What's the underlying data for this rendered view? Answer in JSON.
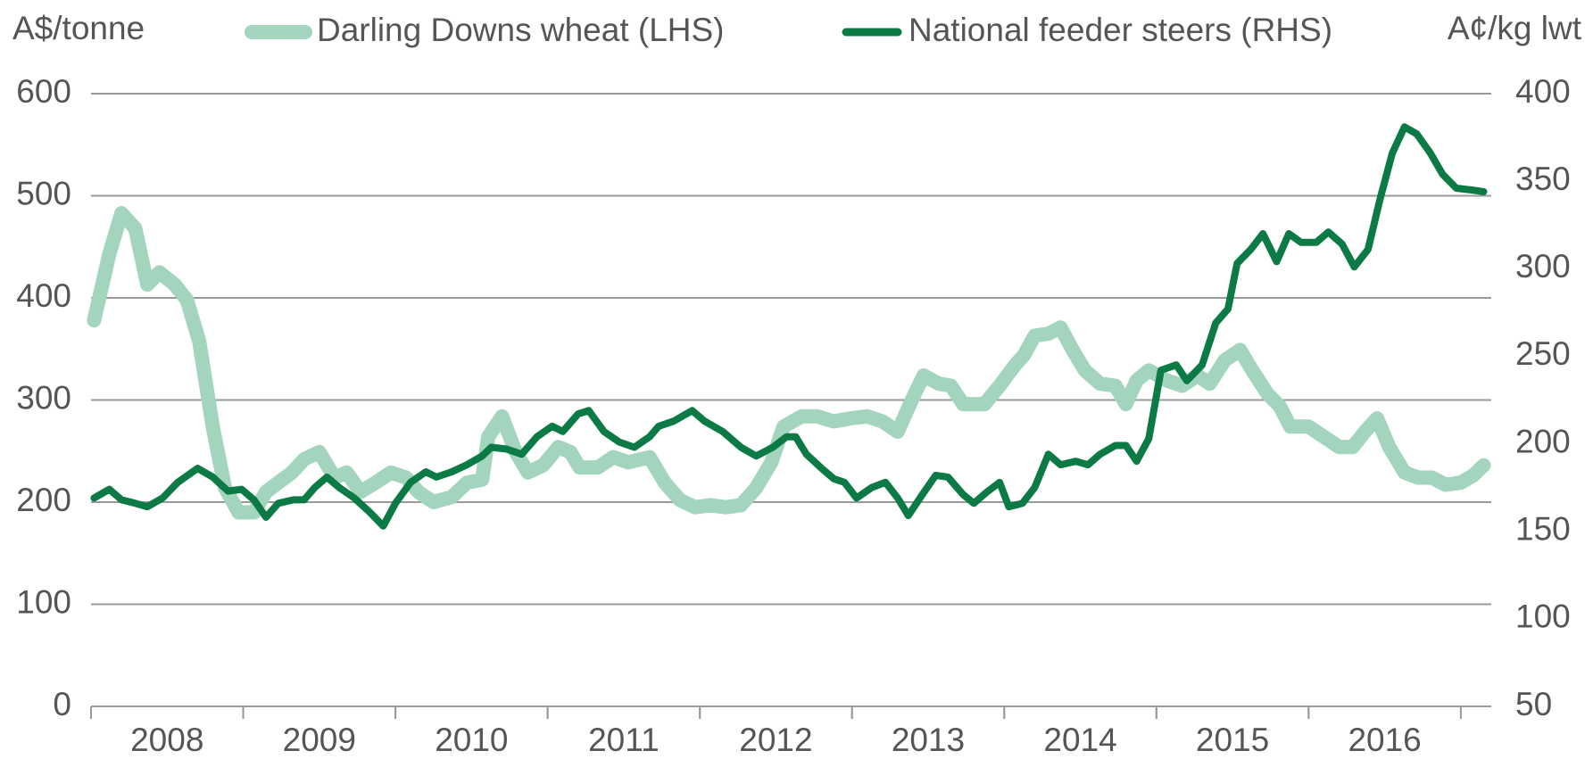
{
  "chart_data": {
    "type": "line",
    "y_label": "A$/tonne",
    "y2_label": "A¢/kg lwt",
    "xlim": [
      2008,
      2017.2
    ],
    "xticks": [
      {
        "value": 2008.5,
        "label": "2008"
      },
      {
        "value": 2009.5,
        "label": "2009"
      },
      {
        "value": 2010.5,
        "label": "2010"
      },
      {
        "value": 2011.5,
        "label": "2011"
      },
      {
        "value": 2012.5,
        "label": "2012"
      },
      {
        "value": 2013.5,
        "label": "2013"
      },
      {
        "value": 2014.5,
        "label": "2014"
      },
      {
        "value": 2015.5,
        "label": "2015"
      },
      {
        "value": 2016.5,
        "label": "2016"
      }
    ],
    "ylim": [
      0,
      600
    ],
    "yticks": [
      0,
      100,
      200,
      300,
      400,
      500,
      600
    ],
    "y2lim": [
      50,
      400
    ],
    "y2ticks": [
      50,
      100,
      150,
      200,
      250,
      300,
      350,
      400
    ],
    "grid": true,
    "series": [
      {
        "name": "Darling Downs wheat (LHS)",
        "color": "#a3d4bd",
        "axis": "y",
        "x": [
          2008.02,
          2008.12,
          2008.2,
          2008.29,
          2008.37,
          2008.45,
          2008.55,
          2008.63,
          2008.71,
          2008.8,
          2008.88,
          2008.97,
          2009.07,
          2009.15,
          2009.23,
          2009.32,
          2009.4,
          2009.5,
          2009.6,
          2009.68,
          2009.77,
          2009.87,
          2009.97,
          2010.07,
          2010.15,
          2010.25,
          2010.37,
          2010.47,
          2010.57,
          2010.61,
          2010.7,
          2010.79,
          2010.87,
          2010.97,
          2011.07,
          2011.15,
          2011.21,
          2011.33,
          2011.43,
          2011.53,
          2011.67,
          2011.77,
          2011.87,
          2011.97,
          2012.07,
          2012.17,
          2012.27,
          2012.37,
          2012.47,
          2012.55,
          2012.67,
          2012.77,
          2012.88,
          2012.99,
          2013.1,
          2013.2,
          2013.3,
          2013.39,
          2013.47,
          2013.57,
          2013.65,
          2013.73,
          2013.87,
          2013.97,
          2014.07,
          2014.13,
          2014.2,
          2014.29,
          2014.37,
          2014.45,
          2014.53,
          2014.63,
          2014.73,
          2014.8,
          2014.87,
          2014.95,
          2015.07,
          2015.17,
          2015.27,
          2015.35,
          2015.45,
          2015.55,
          2015.63,
          2015.73,
          2015.81,
          2015.88,
          2016.0,
          2016.1,
          2016.2,
          2016.29,
          2016.37,
          2016.45,
          2016.53,
          2016.63,
          2016.72,
          2016.81,
          2016.9,
          2017.0,
          2017.08,
          2017.15
        ],
        "values": [
          378,
          443,
          483,
          468,
          413,
          425,
          413,
          398,
          358,
          274,
          214,
          190,
          190,
          210,
          219,
          229,
          242,
          249,
          224,
          229,
          210,
          219,
          229,
          224,
          210,
          200,
          205,
          219,
          222,
          264,
          284,
          249,
          229,
          236,
          254,
          249,
          234,
          234,
          244,
          239,
          244,
          219,
          202,
          195,
          197,
          195,
          197,
          214,
          239,
          274,
          284,
          284,
          279,
          282,
          284,
          279,
          269,
          299,
          324,
          316,
          314,
          296,
          296,
          314,
          334,
          344,
          363,
          365,
          371,
          349,
          329,
          316,
          314,
          296,
          319,
          329,
          319,
          314,
          324,
          316,
          339,
          349,
          329,
          306,
          294,
          274,
          274,
          264,
          254,
          254,
          269,
          282,
          254,
          229,
          224,
          224,
          217,
          219,
          226,
          236
        ]
      },
      {
        "name": "National feeder steers (RHS)",
        "color": "#0b7a45",
        "axis": "y2",
        "x": [
          2008.02,
          2008.12,
          2008.2,
          2008.29,
          2008.37,
          2008.47,
          2008.57,
          2008.7,
          2008.8,
          2008.9,
          2008.99,
          2009.07,
          2009.15,
          2009.23,
          2009.33,
          2009.4,
          2009.47,
          2009.55,
          2009.63,
          2009.73,
          2009.83,
          2009.92,
          2010.0,
          2010.1,
          2010.2,
          2010.27,
          2010.37,
          2010.47,
          2010.57,
          2010.63,
          2010.73,
          2010.83,
          2010.93,
          2011.03,
          2011.1,
          2011.2,
          2011.27,
          2011.37,
          2011.47,
          2011.57,
          2011.67,
          2011.73,
          2011.83,
          2011.95,
          2012.03,
          2012.15,
          2012.27,
          2012.37,
          2012.48,
          2012.57,
          2012.63,
          2012.7,
          2012.8,
          2012.88,
          2012.95,
          2013.03,
          2013.13,
          2013.22,
          2013.3,
          2013.37,
          2013.47,
          2013.55,
          2013.63,
          2013.73,
          2013.8,
          2013.88,
          2013.97,
          2014.03,
          2014.12,
          2014.2,
          2014.29,
          2014.37,
          2014.47,
          2014.55,
          2014.63,
          2014.73,
          2014.8,
          2014.87,
          2014.95,
          2015.03,
          2015.13,
          2015.2,
          2015.3,
          2015.39,
          2015.47,
          2015.53,
          2015.62,
          2015.7,
          2015.79,
          2015.87,
          2015.95,
          2016.05,
          2016.13,
          2016.22,
          2016.3,
          2016.39,
          2016.47,
          2016.55,
          2016.63,
          2016.71,
          2016.8,
          2016.88,
          2016.97,
          2017.07,
          2017.15
        ],
        "values": [
          169,
          174,
          168,
          166,
          164,
          169,
          178,
          186,
          181,
          173,
          174,
          168,
          158,
          166,
          168,
          168,
          175,
          181,
          175,
          169,
          161,
          153,
          166,
          178,
          184,
          181,
          184,
          188,
          193,
          198,
          197,
          194,
          204,
          210,
          207,
          217,
          219,
          207,
          201,
          198,
          204,
          210,
          213,
          219,
          213,
          207,
          198,
          193,
          198,
          204,
          204,
          194,
          186,
          180,
          178,
          169,
          175,
          178,
          169,
          159,
          172,
          182,
          181,
          171,
          166,
          172,
          178,
          164,
          166,
          175,
          194,
          188,
          190,
          188,
          194,
          199,
          199,
          190,
          203,
          242,
          245,
          236,
          245,
          269,
          277,
          303,
          311,
          320,
          304,
          320,
          315,
          315,
          321,
          314,
          301,
          311,
          340,
          366,
          381,
          377,
          366,
          354,
          346,
          345,
          344
        ]
      }
    ]
  }
}
